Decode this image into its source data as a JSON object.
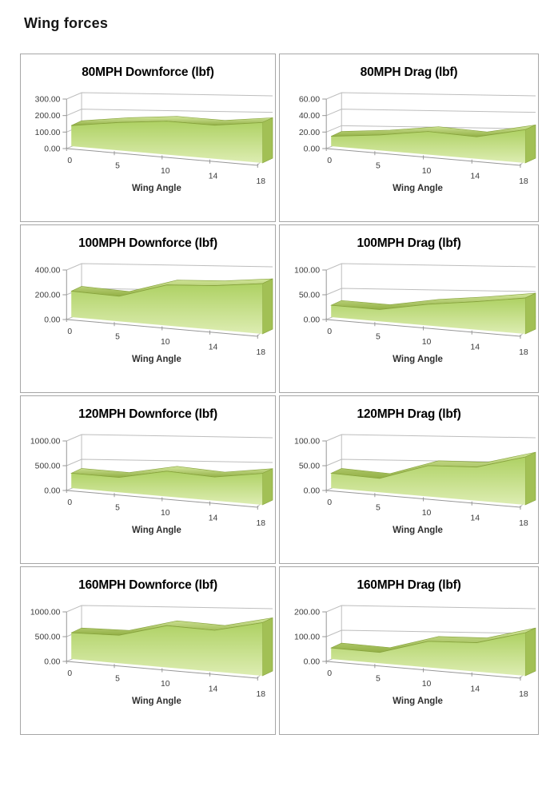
{
  "page": {
    "title": "Wing forces"
  },
  "colors": {
    "area_top": "#aed163",
    "area_bottom": "#ddedb2",
    "ribbon_top": "#d3e79c",
    "ribbon_bottom": "#93b045",
    "side_face": "#a2c055",
    "outline": "#86a23c",
    "grid_line": "#bdbdbd",
    "axis_line": "#979797",
    "tick_text": "#3d3d3d",
    "title_text": "#000000",
    "panel_border": "#a6a6a6"
  },
  "chart_data": [
    {
      "type": "area",
      "title": "80MPH Downforce (lbf)",
      "xlabel": "Wing Angle",
      "x_tick_labels": [
        "0",
        "5",
        "10",
        "14",
        "18"
      ],
      "y_tick_labels": [
        "0.00",
        "100.00",
        "200.00",
        "300.00"
      ],
      "ylim": [
        0,
        300
      ],
      "values": [
        125,
        163,
        188,
        183,
        213
      ]
    },
    {
      "type": "area",
      "title": "80MPH Drag (lbf)",
      "xlabel": "Wing Angle",
      "x_tick_labels": [
        "0",
        "5",
        "10",
        "14",
        "18"
      ],
      "y_tick_labels": [
        "0.00",
        "20.00",
        "40.00",
        "60.00"
      ],
      "ylim": [
        0,
        60
      ],
      "values": [
        12,
        18,
        26,
        24,
        35
      ]
    },
    {
      "type": "area",
      "title": "100MPH Downforce (lbf)",
      "xlabel": "Wing Angle",
      "x_tick_labels": [
        "0",
        "5",
        "10",
        "14",
        "18"
      ],
      "y_tick_labels": [
        "0.00",
        "200.00",
        "400.00"
      ],
      "ylim": [
        0,
        400
      ],
      "values": [
        210,
        195,
        305,
        320,
        353
      ]
    },
    {
      "type": "area",
      "title": "100MPH Drag (lbf)",
      "xlabel": "Wing Angle",
      "x_tick_labels": [
        "0",
        "5",
        "10",
        "14",
        "18"
      ],
      "y_tick_labels": [
        "0.00",
        "50.00",
        "100.00"
      ],
      "ylim": [
        0,
        100
      ],
      "values": [
        24,
        23,
        40,
        51,
        63
      ]
    },
    {
      "type": "area",
      "title": "120MPH Downforce (lbf)",
      "xlabel": "Wing Angle",
      "x_tick_labels": [
        "0",
        "5",
        "10",
        "14",
        "18"
      ],
      "y_tick_labels": [
        "0.00",
        "500.00",
        "1000.00"
      ],
      "ylim": [
        0,
        1000
      ],
      "values": [
        300,
        290,
        475,
        430,
        552
      ]
    },
    {
      "type": "area",
      "title": "120MPH Drag (lbf)",
      "xlabel": "Wing Angle",
      "x_tick_labels": [
        "0",
        "5",
        "10",
        "14",
        "18"
      ],
      "y_tick_labels": [
        "0.00",
        "50.00",
        "100.00"
      ],
      "ylim": [
        0,
        100
      ],
      "values": [
        30,
        27,
        58,
        61,
        84
      ]
    },
    {
      "type": "area",
      "title": "160MPH Downforce (lbf)",
      "xlabel": "Wing Angle",
      "x_tick_labels": [
        "0",
        "5",
        "10",
        "14",
        "18"
      ],
      "y_tick_labels": [
        "0.00",
        "500.00",
        "1000.00"
      ],
      "ylim": [
        0,
        1000
      ],
      "values": [
        530,
        545,
        785,
        750,
        933
      ]
    },
    {
      "type": "area",
      "title": "160MPH Drag (lbf)",
      "xlabel": "Wing Angle",
      "x_tick_labels": [
        "0",
        "5",
        "10",
        "14",
        "18"
      ],
      "y_tick_labels": [
        "0.00",
        "100.00",
        "200.00"
      ],
      "ylim": [
        0,
        200
      ],
      "values": [
        45,
        42,
        98,
        105,
        151
      ]
    }
  ]
}
